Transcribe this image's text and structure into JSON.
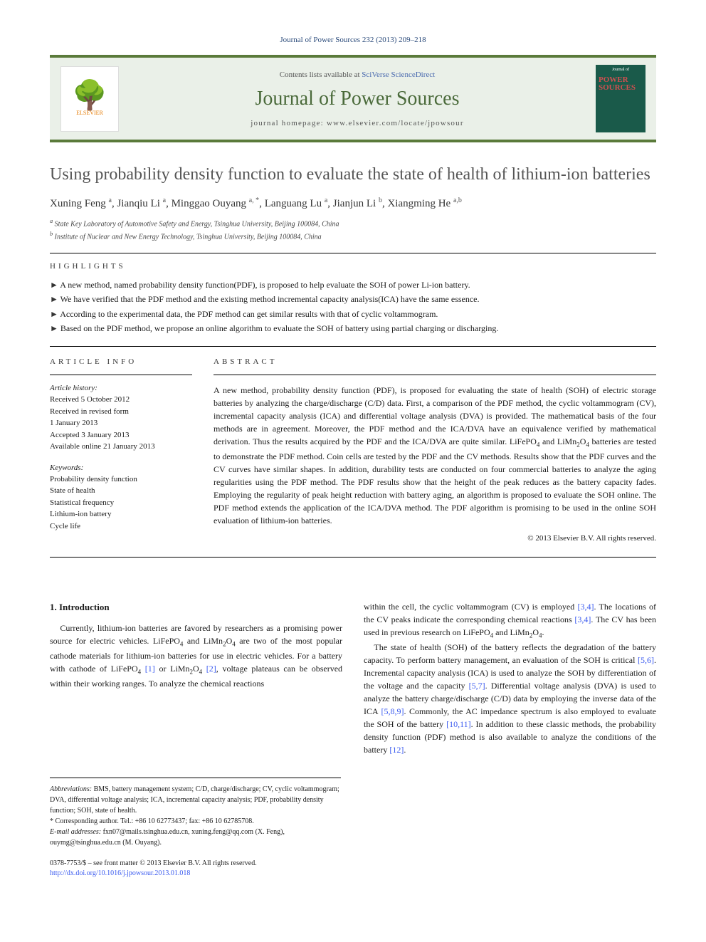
{
  "citation": "Journal of Power Sources 232 (2013) 209–218",
  "header": {
    "contents_prefix": "Contents lists available at ",
    "contents_link": "SciVerse ScienceDirect",
    "journal_name": "Journal of Power Sources",
    "homepage_prefix": "journal homepage: ",
    "homepage_url": "www.elsevier.com/locate/jpowsour",
    "publisher_logo_text": "ELSEVIER",
    "cover_label": "POWER SOURCES"
  },
  "title": "Using probability density function to evaluate the state of health of lithium-ion batteries",
  "authors_html": "Xuning Feng <sup>a</sup>, Jianqiu Li <sup>a</sup>, Minggao Ouyang <sup>a, *</sup>, Languang Lu <sup>a</sup>, Jianjun Li <sup>b</sup>, Xiangming He <sup>a,b</sup>",
  "affiliations": [
    "a State Key Laboratory of Automotive Safety and Energy, Tsinghua University, Beijing 100084, China",
    "b Institute of Nuclear and New Energy Technology, Tsinghua University, Beijing 100084, China"
  ],
  "highlights_label": "HIGHLIGHTS",
  "highlights": [
    "A new method, named probability density function(PDF), is proposed to help evaluate the SOH of power Li-ion battery.",
    "We have verified that the PDF method and the existing method incremental capacity analysis(ICA) have the same essence.",
    "According to the experimental data, the PDF method can get similar results with that of cyclic voltammogram.",
    "Based on the PDF method, we propose an online algorithm to evaluate the SOH of battery using partial charging or discharging."
  ],
  "article_info_label": "ARTICLE INFO",
  "history_label": "Article history:",
  "history": [
    "Received 5 October 2012",
    "Received in revised form",
    "1 January 2013",
    "Accepted 3 January 2013",
    "Available online 21 January 2013"
  ],
  "keywords_label": "Keywords:",
  "keywords": [
    "Probability density function",
    "State of health",
    "Statistical frequency",
    "Lithium-ion battery",
    "Cycle life"
  ],
  "abstract_label": "ABSTRACT",
  "abstract": "A new method, probability density function (PDF), is proposed for evaluating the state of health (SOH) of electric storage batteries by analyzing the charge/discharge (C/D) data. First, a comparison of the PDF method, the cyclic voltammogram (CV), incremental capacity analysis (ICA) and differential voltage analysis (DVA) is provided. The mathematical basis of the four methods are in agreement. Moreover, the PDF method and the ICA/DVA have an equivalence verified by mathematical derivation. Thus the results acquired by the PDF and the ICA/DVA are quite similar. LiFePO4 and LiMn2O4 batteries are tested to demonstrate the PDF method. Coin cells are tested by the PDF and the CV methods. Results show that the PDF curves and the CV curves have similar shapes. In addition, durability tests are conducted on four commercial batteries to analyze the aging regularities using the PDF method. The PDF results show that the height of the peak reduces as the battery capacity fades. Employing the regularity of peak height reduction with battery aging, an algorithm is proposed to evaluate the SOH online. The PDF method extends the application of the ICA/DVA method. The PDF algorithm is promising to be used in the online SOH evaluation of lithium-ion batteries.",
  "copyright": "© 2013 Elsevier B.V. All rights reserved.",
  "intro_heading": "1. Introduction",
  "intro_col1": "Currently, lithium-ion batteries are favored by researchers as a promising power source for electric vehicles. LiFePO4 and LiMn2O4 are two of the most popular cathode materials for lithium-ion batteries for use in electric vehicles. For a battery with cathode of LiFePO4 [1] or LiMn2O4 [2], voltage plateaus can be observed within their working ranges. To analyze the chemical reactions",
  "intro_col2_p1": "within the cell, the cyclic voltammogram (CV) is employed [3,4]. The locations of the CV peaks indicate the corresponding chemical reactions [3,4]. The CV has been used in previous research on LiFePO4 and LiMn2O4.",
  "intro_col2_p2": "The state of health (SOH) of the battery reflects the degradation of the battery capacity. To perform battery management, an evaluation of the SOH is critical [5,6]. Incremental capacity analysis (ICA) is used to analyze the SOH by differentiation of the voltage and the capacity [5,7]. Differential voltage analysis (DVA) is used to analyze the battery charge/discharge (C/D) data by employing the inverse data of the ICA [5,8,9]. Commonly, the AC impedance spectrum is also employed to evaluate the SOH of the battery [10,11]. In addition to these classic methods, the probability density function (PDF) method is also available to analyze the conditions of the battery [12].",
  "footnotes": {
    "abbrev_label": "Abbreviations:",
    "abbrev_text": " BMS, battery management system; C/D, charge/discharge; CV, cyclic voltammogram; DVA, differential voltage analysis; ICA, incremental capacity analysis; PDF, probability density function; SOH, state of health.",
    "corr_label": "* Corresponding author. ",
    "corr_text": "Tel.: +86 10 62773437; fax: +86 10 62785708.",
    "email_label": "E-mail addresses:",
    "email_text": " fxn07@mails.tsinghua.edu.cn, xuning.feng@qq.com (X. Feng), ouymg@tsinghua.edu.cn (M. Ouyang)."
  },
  "footer": {
    "issn_text": "0378-7753/$ – see front matter © 2013 Elsevier B.V. All rights reserved.",
    "doi": "http://dx.doi.org/10.1016/j.jpowsour.2013.01.018"
  },
  "refs": {
    "r1": "[1]",
    "r2": "[2]",
    "r34": "[3,4]",
    "r56": "[5,6]",
    "r57": "[5,7]",
    "r589": "[5,8,9]",
    "r1011": "[10,11]",
    "r12": "[12]"
  },
  "colors": {
    "accent_green": "#5a7a3a",
    "header_bg": "#eaf0e8",
    "link_blue": "#3a5aef",
    "elsevier_orange": "#e67a00"
  }
}
